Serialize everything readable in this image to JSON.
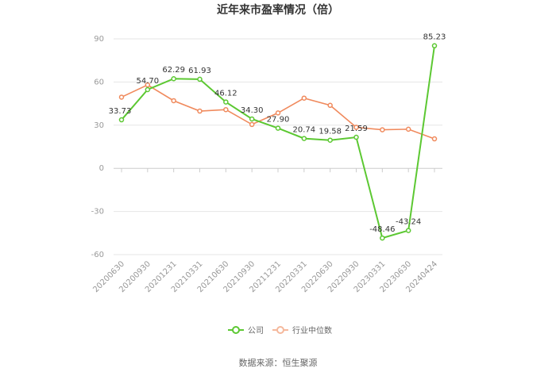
{
  "chart_data": {
    "type": "line",
    "title": "近年来市盈率情况（倍）",
    "categories": [
      "20200630",
      "20200930",
      "20201231",
      "20210331",
      "20210630",
      "20210930",
      "20211231",
      "20220331",
      "20220630",
      "20220930",
      "20230331",
      "20230630",
      "20240424"
    ],
    "ylim": [
      -60,
      90
    ],
    "yticks": [
      -60,
      -30,
      0,
      30,
      60,
      90
    ],
    "grid": true,
    "legend_position": "bottom-center",
    "series": [
      {
        "name": "公司",
        "color": "#5cc832",
        "values": [
          33.73,
          54.7,
          62.29,
          61.93,
          46.12,
          34.3,
          27.9,
          20.74,
          19.58,
          21.59,
          -48.46,
          -43.24,
          85.23
        ],
        "labels": [
          "33.73",
          "54.70",
          "62.29",
          "61.93",
          "46.12",
          "34.30",
          "27.90",
          "20.74",
          "19.58",
          "21.59",
          "-48.46",
          "-43.24",
          "85.23"
        ]
      },
      {
        "name": "行业中位数",
        "color": "#f08a5d",
        "values": [
          49.5,
          58.0,
          47.0,
          39.8,
          40.8,
          30.5,
          38.5,
          48.8,
          43.8,
          28.5,
          26.8,
          27.2,
          20.5
        ]
      }
    ],
    "source": "数据来源：恒生聚源"
  }
}
